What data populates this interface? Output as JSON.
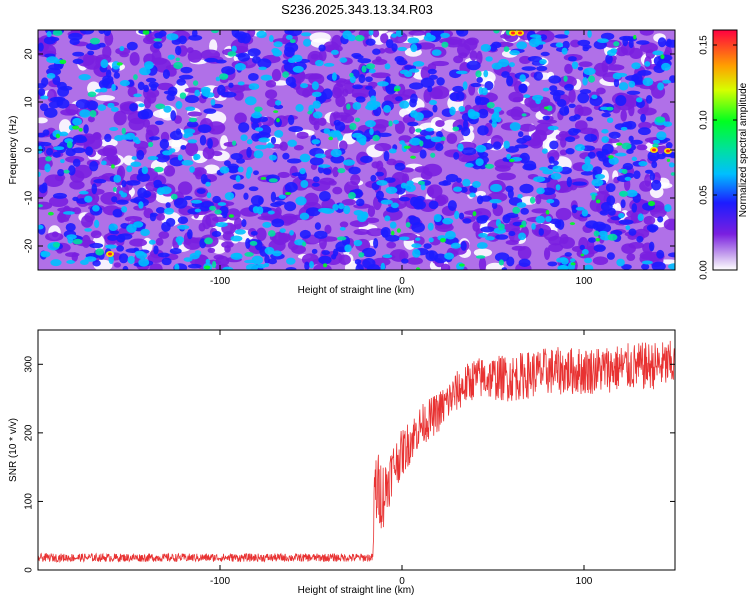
{
  "title": "S236.2025.343.13.34.R03",
  "chart_data": [
    {
      "type": "heatmap",
      "xlabel": "Height of straight line (km)",
      "ylabel": "Frequency (Hz)",
      "xlim": [
        -200,
        150
      ],
      "ylim": [
        -25,
        25
      ],
      "x_ticks": [
        "-100",
        "0",
        "100"
      ],
      "x_tick_values": [
        -100,
        0,
        100
      ],
      "y_ticks": [
        "-20",
        "-10",
        "0",
        "10",
        "20"
      ],
      "y_tick_values": [
        -20,
        -10,
        0,
        10,
        20
      ],
      "colorbar": {
        "label": "Normalized spectral amplitude",
        "range": [
          0,
          0.16
        ],
        "ticks": [
          "0.00",
          "0.05",
          "0.10",
          "0.15"
        ],
        "tick_values": [
          0,
          0.05,
          0.1,
          0.15
        ]
      },
      "description_values": {
        "background_level": 0.02,
        "typical_peak": 0.06,
        "max_peak": 0.16
      }
    },
    {
      "type": "line",
      "xlabel": "Height of straight line (km)",
      "ylabel": "SNR (10 * v/v)",
      "xlim": [
        -200,
        150
      ],
      "ylim": [
        0,
        350
      ],
      "x_ticks": [
        "-100",
        "0",
        "100"
      ],
      "x_tick_values": [
        -100,
        0,
        100
      ],
      "y_ticks": [
        "0",
        "100",
        "200",
        "300"
      ],
      "y_tick_values": [
        0,
        100,
        200,
        300
      ],
      "color": "#e83232",
      "series": [
        {
          "name": "SNR",
          "x": [
            -200,
            -100,
            -16,
            -15,
            -10,
            -5,
            0,
            10,
            20,
            30,
            40,
            60,
            80,
            100,
            120,
            150
          ],
          "y": [
            18,
            18,
            18,
            120,
            110,
            150,
            170,
            210,
            230,
            260,
            280,
            280,
            290,
            290,
            295,
            300
          ],
          "noise": [
            6,
            6,
            6,
            60,
            50,
            35,
            35,
            30,
            30,
            30,
            30,
            35,
            35,
            35,
            35,
            35
          ]
        }
      ]
    }
  ]
}
